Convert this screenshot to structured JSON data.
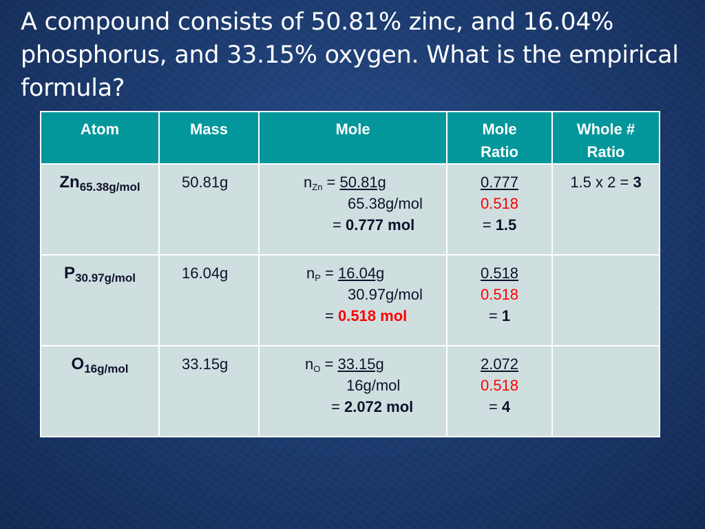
{
  "question": "A compound consists of 50.81% zinc, and 16.04% phosphorus, and 33.15% oxygen. What is the empirical formula?",
  "headers": {
    "atom": "Atom",
    "mass": "Mass",
    "mole": "Mole",
    "ratio_line1": "Mole",
    "ratio_line2": "Ratio",
    "whole_line1": "Whole #",
    "whole_line2": "Ratio"
  },
  "rows": [
    {
      "symbol": "Zn",
      "molar_mass": "65.38g/mol",
      "mass": "50.81g",
      "n_label": "n",
      "n_sub": "Zn",
      "eq": " = ",
      "numerator": "50.81g",
      "denominator": "65.38g/mol",
      "result_prefix": "= ",
      "result": "0.777 mol",
      "result_red": false,
      "ratio_num": "0.777",
      "ratio_den": "0.518",
      "ratio_prefix": "= ",
      "ratio_result": "1.5",
      "whole_expr": "1.5 x 2 = ",
      "whole_result": "3"
    },
    {
      "symbol": "P",
      "molar_mass": "30.97g/mol",
      "mass": "16.04g",
      "n_label": "n",
      "n_sub": "P",
      "eq": " = ",
      "numerator": "16.04g",
      "denominator": "30.97g/mol",
      "result_prefix": "= ",
      "result": "0.518 mol",
      "result_red": true,
      "ratio_num": "0.518",
      "ratio_den": "0.518",
      "ratio_prefix": "= ",
      "ratio_result": "1",
      "whole_expr": "",
      "whole_result": ""
    },
    {
      "symbol": "O",
      "molar_mass": "16g/mol",
      "mass": "33.15g",
      "n_label": "n",
      "n_sub": "O",
      "eq": " = ",
      "numerator": "33.15g",
      "denominator": "16g/mol",
      "result_prefix": "= ",
      "result": "2.072 mol",
      "result_red": false,
      "ratio_num": "2.072",
      "ratio_den": "0.518",
      "ratio_prefix": "= ",
      "ratio_result": "4",
      "whole_expr": "",
      "whole_result": ""
    }
  ]
}
